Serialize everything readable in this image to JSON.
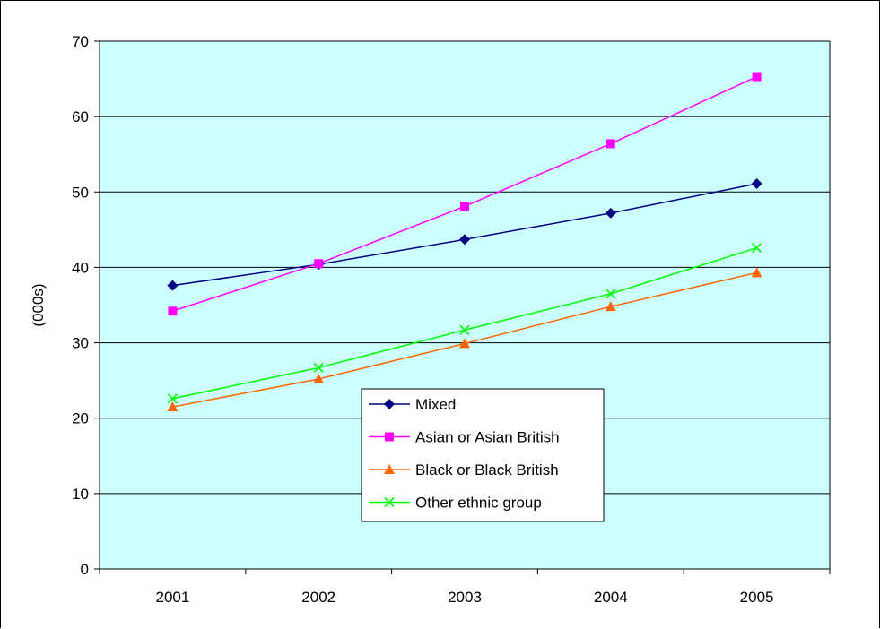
{
  "chart_data": {
    "type": "line",
    "title": "",
    "xlabel": "",
    "ylabel": "(000s)",
    "categories": [
      "2001",
      "2002",
      "2003",
      "2004",
      "2005"
    ],
    "ylim": [
      0,
      70
    ],
    "yticks": [
      0,
      10,
      20,
      30,
      40,
      50,
      60,
      70
    ],
    "grid": true,
    "plot_background": "#ccffff",
    "legend_position": "inside-bottom-center",
    "series": [
      {
        "name": "Mixed",
        "color": "#000080",
        "marker": "diamond",
        "values": [
          37.6,
          40.4,
          43.7,
          47.2,
          51.1
        ]
      },
      {
        "name": "Asian or Asian British",
        "color": "#ff00ff",
        "marker": "square",
        "values": [
          34.2,
          40.5,
          48.1,
          56.4,
          65.3
        ]
      },
      {
        "name": "Black or Black British",
        "color": "#ff6600",
        "marker": "triangle",
        "values": [
          21.5,
          25.2,
          29.9,
          34.8,
          39.3
        ]
      },
      {
        "name": "Other ethnic group",
        "color": "#00ff00",
        "marker": "x",
        "values": [
          22.6,
          26.7,
          31.7,
          36.5,
          42.6
        ]
      }
    ]
  }
}
